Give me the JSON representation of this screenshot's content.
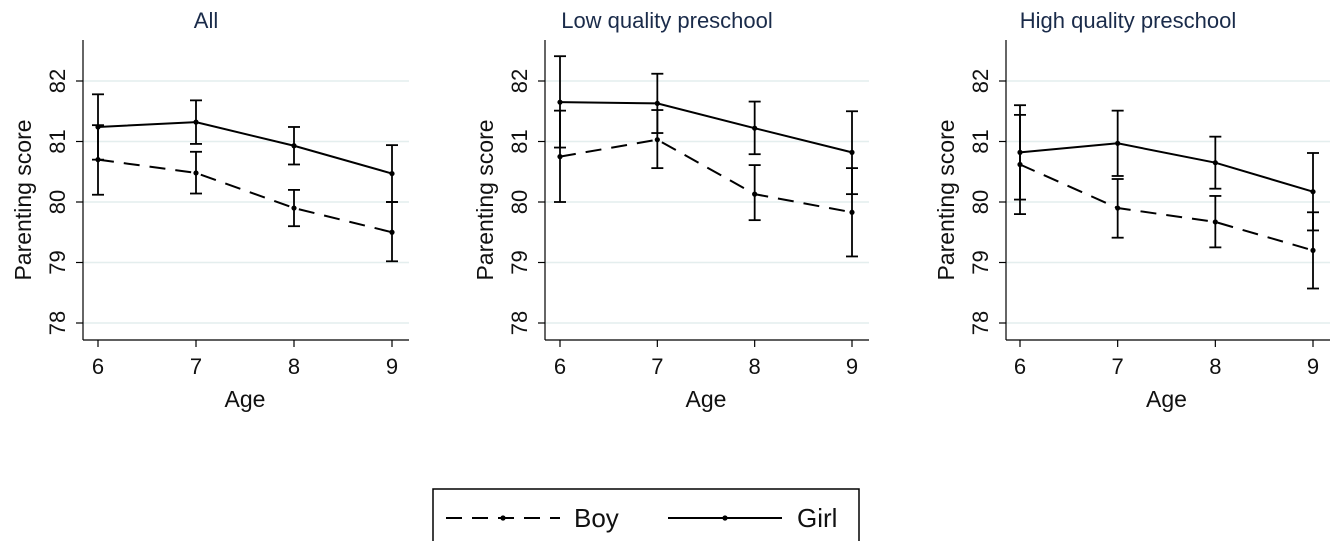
{
  "chart_data": [
    {
      "type": "line",
      "title": "All",
      "xlabel": "Age",
      "ylabel": "Parenting score",
      "x": [
        6,
        7,
        8,
        9
      ],
      "xticks": [
        "6",
        "7",
        "8",
        "9"
      ],
      "yticks": [
        "78",
        "79",
        "80",
        "81",
        "82"
      ],
      "ylim": [
        77.85,
        82.7
      ],
      "grid": true,
      "series": [
        {
          "name": "Boy",
          "style": "dashed",
          "values": [
            80.7,
            80.48,
            79.9,
            79.5
          ],
          "ci_low": [
            80.12,
            80.14,
            79.6,
            79.02
          ],
          "ci_high": [
            81.27,
            80.83,
            80.2,
            80.0
          ]
        },
        {
          "name": "Girl",
          "style": "solid",
          "values": [
            81.24,
            81.32,
            80.93,
            80.47
          ],
          "ci_low": [
            80.7,
            80.96,
            80.62,
            80.0
          ],
          "ci_high": [
            81.78,
            81.68,
            81.24,
            80.94
          ]
        }
      ]
    },
    {
      "type": "line",
      "title": "Low quality preschool",
      "xlabel": "Age",
      "ylabel": "Parenting score",
      "x": [
        6,
        7,
        8,
        9
      ],
      "xticks": [
        "6",
        "7",
        "8",
        "9"
      ],
      "yticks": [
        "78",
        "79",
        "80",
        "81",
        "82"
      ],
      "ylim": [
        77.85,
        82.7
      ],
      "grid": true,
      "series": [
        {
          "name": "Boy",
          "style": "dashed",
          "values": [
            80.75,
            81.03,
            80.13,
            79.83
          ],
          "ci_low": [
            80.0,
            80.56,
            79.7,
            79.1
          ],
          "ci_high": [
            81.51,
            81.52,
            80.61,
            80.56
          ]
        },
        {
          "name": "Girl",
          "style": "solid",
          "values": [
            81.65,
            81.63,
            81.22,
            80.82
          ],
          "ci_low": [
            80.9,
            81.14,
            80.79,
            80.13
          ],
          "ci_high": [
            82.41,
            82.12,
            81.66,
            81.5
          ]
        }
      ]
    },
    {
      "type": "line",
      "title": "High quality preschool",
      "xlabel": "Age",
      "ylabel": "Parenting score",
      "x": [
        6,
        7,
        8,
        9
      ],
      "xticks": [
        "6",
        "7",
        "8",
        "9"
      ],
      "yticks": [
        "78",
        "79",
        "80",
        "81",
        "82"
      ],
      "ylim": [
        77.85,
        82.7
      ],
      "grid": true,
      "series": [
        {
          "name": "Boy",
          "style": "dashed",
          "values": [
            80.62,
            79.9,
            79.67,
            79.2
          ],
          "ci_low": [
            79.8,
            79.41,
            79.25,
            78.57
          ],
          "ci_high": [
            81.44,
            80.38,
            80.1,
            79.83
          ]
        },
        {
          "name": "Girl",
          "style": "solid",
          "values": [
            80.82,
            80.97,
            80.65,
            80.17
          ],
          "ci_low": [
            80.04,
            80.43,
            80.22,
            79.53
          ],
          "ci_high": [
            81.6,
            81.51,
            81.08,
            80.81
          ]
        }
      ]
    }
  ],
  "legend": {
    "position": "bottom-center",
    "items": [
      {
        "label": "Boy",
        "style": "dashed"
      },
      {
        "label": "Girl",
        "style": "solid"
      }
    ]
  },
  "colors": {
    "line": "#000000",
    "grid": "#e4eeee",
    "title": "#1a2b4a"
  }
}
